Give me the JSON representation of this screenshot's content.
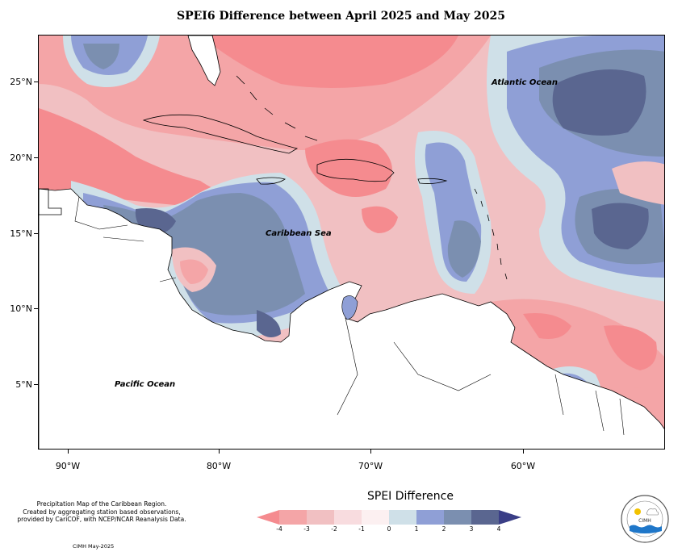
{
  "title": "SPEI6 Difference between April 2025 and May 2025",
  "map": {
    "latitude_labels": [
      "25°N",
      "20°N",
      "15°N",
      "10°N",
      "5°N"
    ],
    "longitude_labels": [
      "90°W",
      "80°W",
      "70°W",
      "60°W"
    ],
    "place_labels": {
      "atlantic": "Atlantic Ocean",
      "caribbean": "Caribbean Sea",
      "pacific": "Pacific Ocean"
    }
  },
  "legend": {
    "title": "SPEI Difference",
    "ticks": [
      "-4",
      "-3",
      "-2",
      "-1",
      "0",
      "1",
      "2",
      "3",
      "4"
    ],
    "colors": [
      "#f58b8f",
      "#f4a5a7",
      "#f1c0c2",
      "#f8dcdf",
      "#fcf0f1",
      "#cfe0e8",
      "#8f9fd6",
      "#7b8fb0",
      "#5a6690",
      "#3a3e86"
    ]
  },
  "credit": {
    "line1": "Precipitation Map of the Caribbean Region.",
    "line2": "Created by aggregating station based observations,",
    "line3": "provided by CariCOF, with NCEP/NCAR Reanalysis Data.",
    "date": "CIMH May-2025"
  },
  "logo": {
    "text": "CIMH"
  }
}
